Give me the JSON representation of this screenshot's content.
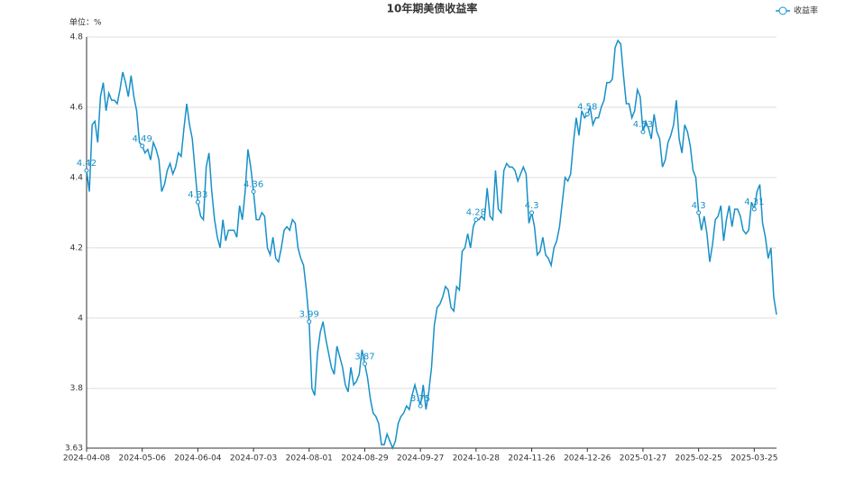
{
  "chart_data": {
    "type": "line",
    "title": "10年期美债收益率",
    "y_unit_label": "单位：%",
    "ylim": [
      3.63,
      4.8
    ],
    "yticks": [
      3.63,
      3.8,
      4,
      4.2,
      4.4,
      4.6,
      4.8
    ],
    "grid": true,
    "legend_position": "top-right",
    "categories": [
      "2024-04-08",
      null,
      null,
      null,
      null,
      null,
      null,
      null,
      null,
      null,
      null,
      null,
      null,
      null,
      null,
      null,
      null,
      null,
      null,
      null,
      "2024-05-06",
      null,
      null,
      null,
      null,
      null,
      null,
      null,
      null,
      null,
      null,
      null,
      null,
      null,
      null,
      null,
      null,
      null,
      null,
      null,
      "2024-06-04",
      null,
      null,
      null,
      null,
      null,
      null,
      null,
      null,
      null,
      null,
      null,
      null,
      null,
      null,
      null,
      null,
      null,
      null,
      null,
      "2024-07-03",
      null,
      null,
      null,
      null,
      null,
      null,
      null,
      null,
      null,
      null,
      null,
      null,
      null,
      null,
      null,
      null,
      null,
      null,
      null,
      "2024-08-01",
      null,
      null,
      null,
      null,
      null,
      null,
      null,
      null,
      null,
      null,
      null,
      null,
      null,
      null,
      null,
      null,
      null,
      null,
      null,
      "2024-08-29",
      null,
      null,
      null,
      null,
      null,
      null,
      null,
      null,
      null,
      null,
      null,
      null,
      null,
      null,
      null,
      null,
      null,
      null,
      null,
      "2024-09-27",
      null,
      null,
      null,
      null,
      null,
      null,
      null,
      null,
      null,
      null,
      null,
      null,
      null,
      null,
      null,
      null,
      null,
      null,
      null,
      "2024-10-28",
      null,
      null,
      null,
      null,
      null,
      null,
      null,
      null,
      null,
      null,
      null,
      null,
      null,
      null,
      null,
      null,
      null,
      null,
      null,
      "2024-11-26",
      null,
      null,
      null,
      null,
      null,
      null,
      null,
      null,
      null,
      null,
      null,
      null,
      null,
      null,
      null,
      null,
      null,
      null,
      null,
      "2024-12-26",
      null,
      null,
      null,
      null,
      null,
      null,
      null,
      null,
      null,
      null,
      null,
      null,
      null,
      null,
      null,
      null,
      null,
      null,
      null,
      "2025-01-27",
      null,
      null,
      null,
      null,
      null,
      null,
      null,
      null,
      null,
      null,
      null,
      null,
      null,
      null,
      null,
      null,
      null,
      null,
      null,
      "2025-02-25",
      null,
      null,
      null,
      null,
      null,
      null,
      null,
      null,
      null,
      null,
      null,
      null,
      null,
      null,
      null,
      null,
      null,
      null,
      null,
      "2025-03-25",
      null,
      null,
      null,
      null,
      null,
      null,
      null,
      null
    ],
    "series": [
      {
        "name": "收益率",
        "color": "#1890c8",
        "values": [
          4.42,
          4.36,
          4.55,
          4.56,
          4.5,
          4.63,
          4.67,
          4.59,
          4.64,
          4.62,
          4.62,
          4.61,
          4.65,
          4.7,
          4.67,
          4.63,
          4.69,
          4.63,
          4.59,
          4.5,
          4.49,
          4.47,
          4.48,
          4.45,
          4.5,
          4.48,
          4.45,
          4.36,
          4.38,
          4.42,
          4.44,
          4.41,
          4.43,
          4.47,
          4.46,
          4.54,
          4.61,
          4.55,
          4.51,
          4.42,
          4.33,
          4.29,
          4.28,
          4.43,
          4.47,
          4.36,
          4.28,
          4.23,
          4.2,
          4.28,
          4.22,
          4.25,
          4.25,
          4.25,
          4.23,
          4.32,
          4.28,
          4.36,
          4.48,
          4.43,
          4.36,
          4.28,
          4.28,
          4.3,
          4.29,
          4.2,
          4.18,
          4.23,
          4.17,
          4.16,
          4.2,
          4.25,
          4.26,
          4.25,
          4.28,
          4.27,
          4.2,
          4.17,
          4.15,
          4.08,
          3.99,
          3.8,
          3.78,
          3.9,
          3.96,
          3.99,
          3.94,
          3.9,
          3.86,
          3.84,
          3.92,
          3.89,
          3.86,
          3.81,
          3.79,
          3.86,
          3.81,
          3.82,
          3.84,
          3.91,
          3.87,
          3.83,
          3.77,
          3.73,
          3.72,
          3.7,
          3.64,
          3.64,
          3.67,
          3.65,
          3.63,
          3.65,
          3.7,
          3.72,
          3.73,
          3.75,
          3.74,
          3.78,
          3.81,
          3.78,
          3.75,
          3.81,
          3.74,
          3.79,
          3.86,
          3.98,
          4.03,
          4.04,
          4.06,
          4.09,
          4.08,
          4.03,
          4.02,
          4.09,
          4.08,
          4.19,
          4.2,
          4.24,
          4.2,
          4.26,
          4.28,
          4.28,
          4.29,
          4.28,
          4.37,
          4.29,
          4.28,
          4.42,
          4.31,
          4.3,
          4.42,
          4.44,
          4.43,
          4.43,
          4.42,
          4.39,
          4.41,
          4.43,
          4.41,
          4.27,
          4.3,
          4.26,
          4.18,
          4.19,
          4.23,
          4.18,
          4.17,
          4.15,
          4.2,
          4.22,
          4.26,
          4.33,
          4.4,
          4.39,
          4.41,
          4.5,
          4.57,
          4.52,
          4.59,
          4.57,
          4.58,
          4.6,
          4.55,
          4.57,
          4.57,
          4.6,
          4.62,
          4.67,
          4.67,
          4.68,
          4.77,
          4.79,
          4.78,
          4.69,
          4.61,
          4.61,
          4.57,
          4.59,
          4.65,
          4.63,
          4.53,
          4.56,
          4.54,
          4.51,
          4.58,
          4.53,
          4.51,
          4.43,
          4.45,
          4.5,
          4.52,
          4.55,
          4.62,
          4.51,
          4.47,
          4.55,
          4.53,
          4.49,
          4.42,
          4.4,
          4.3,
          4.25,
          4.29,
          4.24,
          4.16,
          4.21,
          4.28,
          4.29,
          4.32,
          4.22,
          4.28,
          4.32,
          4.26,
          4.31,
          4.31,
          4.29,
          4.25,
          4.24,
          4.25,
          4.33,
          4.31,
          4.36,
          4.38,
          4.27,
          4.23,
          4.17,
          4.2,
          4.06,
          4.01
        ]
      }
    ]
  }
}
